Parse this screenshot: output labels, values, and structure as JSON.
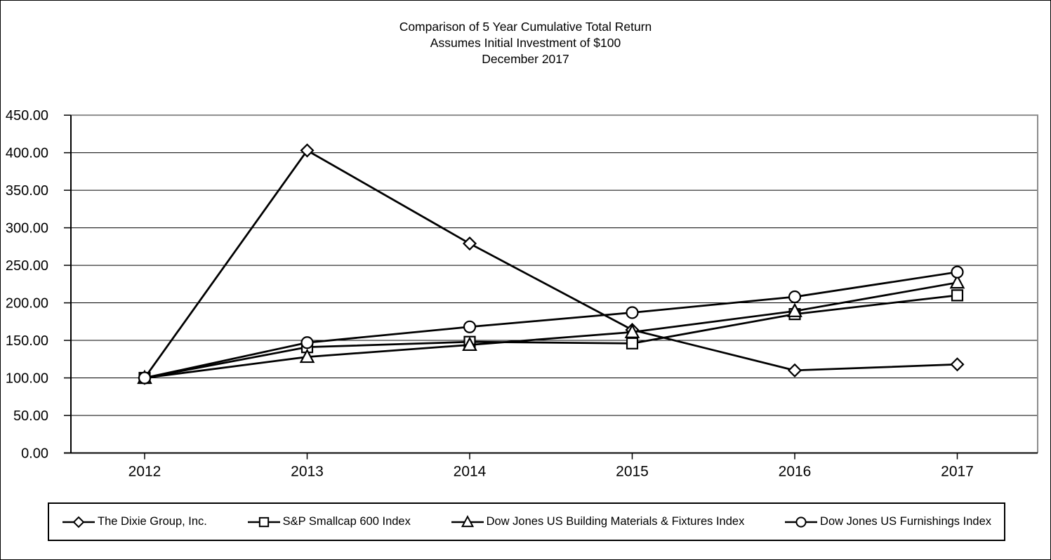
{
  "chart_data": {
    "type": "line",
    "title_lines": [
      "Comparison of 5 Year Cumulative Total Return",
      "Assumes Initial Investment of $100",
      "December 2017"
    ],
    "x": [
      "2012",
      "2013",
      "2014",
      "2015",
      "2016",
      "2017"
    ],
    "series": [
      {
        "name": "The Dixie Group, Inc.",
        "marker": "diamond",
        "values": [
          100,
          403,
          279,
          164,
          110,
          118
        ]
      },
      {
        "name": "S&P Smallcap 600 Index",
        "marker": "square",
        "values": [
          100,
          141,
          148,
          146,
          185,
          210
        ]
      },
      {
        "name": "Dow Jones US Building Materials & Fixtures Index",
        "marker": "triangle",
        "values": [
          100,
          128,
          144,
          161,
          189,
          227
        ]
      },
      {
        "name": "Dow Jones US Furnishings Index",
        "marker": "circle",
        "values": [
          100,
          147,
          168,
          187,
          208,
          241
        ]
      }
    ],
    "ylim": [
      0,
      450
    ],
    "ytick_step": 50,
    "yticks": [
      "0.00",
      "50.00",
      "100.00",
      "150.00",
      "200.00",
      "250.00",
      "300.00",
      "350.00",
      "400.00",
      "450.00"
    ],
    "grid": true,
    "legend_position": "bottom",
    "line_color": "#000000",
    "marker_fill": "#ffffff",
    "text_color": "#000000",
    "plot_border_color": "#8c8c8c",
    "gridline_color": "#000000"
  }
}
